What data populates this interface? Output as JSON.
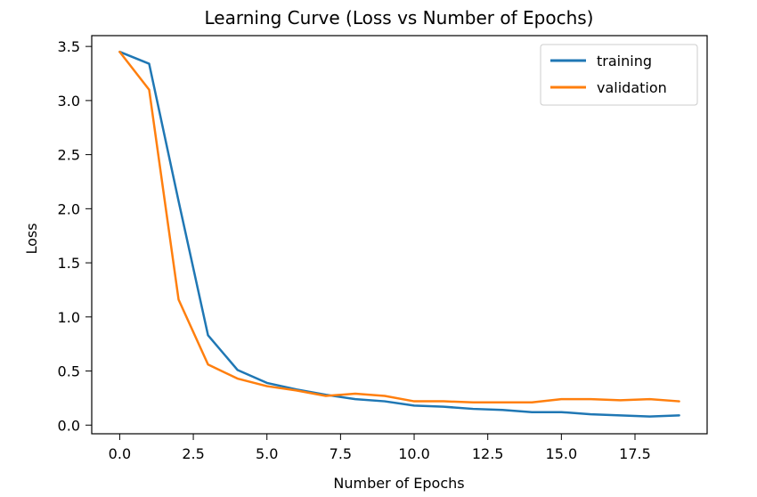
{
  "chart_data": {
    "type": "line",
    "title": "Learning Curve (Loss vs Number of Epochs)",
    "xlabel": "Number of Epochs",
    "ylabel": "Loss",
    "xlim": [
      -0.95,
      19.95
    ],
    "ylim": [
      -0.08,
      3.6
    ],
    "x_ticks": [
      0.0,
      2.5,
      5.0,
      7.5,
      10.0,
      12.5,
      15.0,
      17.5
    ],
    "x_tick_labels": [
      "0.0",
      "2.5",
      "5.0",
      "7.5",
      "10.0",
      "12.5",
      "15.0",
      "17.5"
    ],
    "y_ticks": [
      0.0,
      0.5,
      1.0,
      1.5,
      2.0,
      2.5,
      3.0,
      3.5
    ],
    "y_tick_labels": [
      "0.0",
      "0.5",
      "1.0",
      "1.5",
      "2.0",
      "2.5",
      "3.0",
      "3.5"
    ],
    "grid": false,
    "legend_position": "top-right",
    "x": [
      0,
      1,
      2,
      3,
      4,
      5,
      6,
      7,
      8,
      9,
      10,
      11,
      12,
      13,
      14,
      15,
      16,
      17,
      18,
      19
    ],
    "series": [
      {
        "name": "training",
        "color": "#1f77b4",
        "values": [
          3.45,
          3.34,
          2.07,
          0.83,
          0.51,
          0.39,
          0.33,
          0.28,
          0.24,
          0.22,
          0.18,
          0.17,
          0.15,
          0.14,
          0.12,
          0.12,
          0.1,
          0.09,
          0.08,
          0.09
        ]
      },
      {
        "name": "validation",
        "color": "#ff7f0e",
        "values": [
          3.45,
          3.1,
          1.16,
          0.56,
          0.43,
          0.36,
          0.32,
          0.27,
          0.29,
          0.27,
          0.22,
          0.22,
          0.21,
          0.21,
          0.21,
          0.24,
          0.24,
          0.23,
          0.24,
          0.22
        ]
      }
    ]
  }
}
